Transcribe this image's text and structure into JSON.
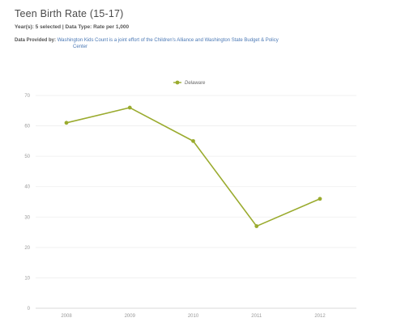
{
  "header": {
    "title": "Teen Birth Rate (15-17)",
    "subtitle": "Year(s): 5 selected | Data Type: Rate per 1,000",
    "provided_label": "Data Provided by:",
    "provided_link_line1": "Washington Kids Count is a joint effort of the Children's Alliance and Washington State Budget & Policy",
    "provided_link_line2": "Center"
  },
  "colors": {
    "series": "#9aab2e",
    "gridline": "#eeeeee",
    "axis": "#cccccc"
  },
  "chart_data": {
    "type": "line",
    "title": "",
    "xlabel": "",
    "ylabel": "",
    "x": [
      "2008",
      "2009",
      "2010",
      "2011",
      "2012"
    ],
    "ylim": [
      0,
      70
    ],
    "yticks": [
      0,
      10,
      20,
      30,
      40,
      50,
      60,
      70
    ],
    "grid": true,
    "legend_position": "top-center",
    "series": [
      {
        "name": "Delaware",
        "values": [
          61,
          66,
          55,
          27,
          36
        ]
      }
    ]
  }
}
